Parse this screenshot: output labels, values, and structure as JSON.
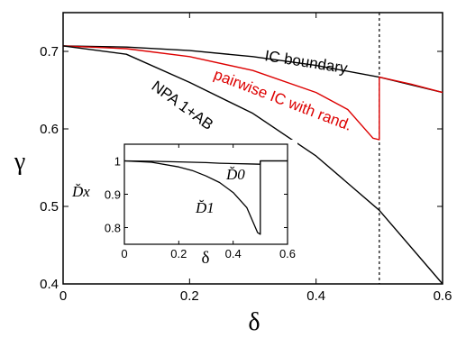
{
  "chart_data": [
    {
      "type": "line",
      "xlabel": "δ",
      "ylabel": "γ",
      "xlim": [
        0,
        0.6
      ],
      "ylim": [
        0.4,
        0.75
      ],
      "x_ticks": [
        "0",
        "0.2",
        "0.4",
        "0.6"
      ],
      "y_ticks": [
        "0.4",
        "0.5",
        "0.6",
        "0.7"
      ],
      "x_tick_values": [
        0,
        0.2,
        0.4,
        0.6
      ],
      "y_tick_values": [
        0.4,
        0.5,
        0.6,
        0.7
      ],
      "vline_x": 0.5,
      "series": [
        {
          "name": "IC boundary",
          "color": "#000000",
          "x": [
            0,
            0.1,
            0.2,
            0.3,
            0.4,
            0.5,
            0.6
          ],
          "y": [
            0.7071,
            0.7056,
            0.7011,
            0.6932,
            0.6819,
            0.6667,
            0.647
          ]
        },
        {
          "name": "pairwise IC with rand.",
          "color": "#dd0000",
          "x": [
            0,
            0.1,
            0.2,
            0.3,
            0.4,
            0.45,
            0.49,
            0.5,
            0.5,
            0.55,
            0.6
          ],
          "y": [
            0.7071,
            0.7035,
            0.6932,
            0.6753,
            0.647,
            0.625,
            0.588,
            0.586,
            0.6667,
            0.6578,
            0.647
          ]
        },
        {
          "name": "NPA 1+AB",
          "color": "#000000",
          "x": [
            0,
            0.1,
            0.2,
            0.3,
            0.4,
            0.5,
            0.6
          ],
          "y": [
            0.7071,
            0.6963,
            0.66,
            0.62,
            0.565,
            0.495,
            0.4
          ]
        }
      ]
    },
    {
      "type": "line",
      "xlabel": "δ",
      "ylabel": "D̆x",
      "xlim": [
        0,
        0.6
      ],
      "ylim": [
        0.75,
        1.05
      ],
      "x_ticks": [
        "0",
        "0.2",
        "0.4",
        "0.6"
      ],
      "y_ticks": [
        "0.8",
        "0.9",
        "1"
      ],
      "x_tick_values": [
        0,
        0.2,
        0.4,
        0.6
      ],
      "y_tick_values": [
        0.8,
        0.9,
        1.0
      ],
      "series": [
        {
          "name": "D̆0",
          "color": "#000000",
          "x": [
            0,
            0.1,
            0.2,
            0.3,
            0.35,
            0.4,
            0.45,
            0.5,
            0.5,
            0.6
          ],
          "y": [
            1.0,
            0.999,
            0.997,
            0.995,
            0.993,
            0.992,
            0.991,
            0.99,
            1.0,
            1.0
          ]
        },
        {
          "name": "D̆1",
          "color": "#000000",
          "x": [
            0,
            0.1,
            0.2,
            0.25,
            0.3,
            0.35,
            0.4,
            0.45,
            0.49,
            0.5,
            0.5,
            0.6
          ],
          "y": [
            1.0,
            0.996,
            0.982,
            0.971,
            0.955,
            0.935,
            0.905,
            0.86,
            0.785,
            0.78,
            1.0,
            1.0
          ]
        }
      ]
    }
  ]
}
